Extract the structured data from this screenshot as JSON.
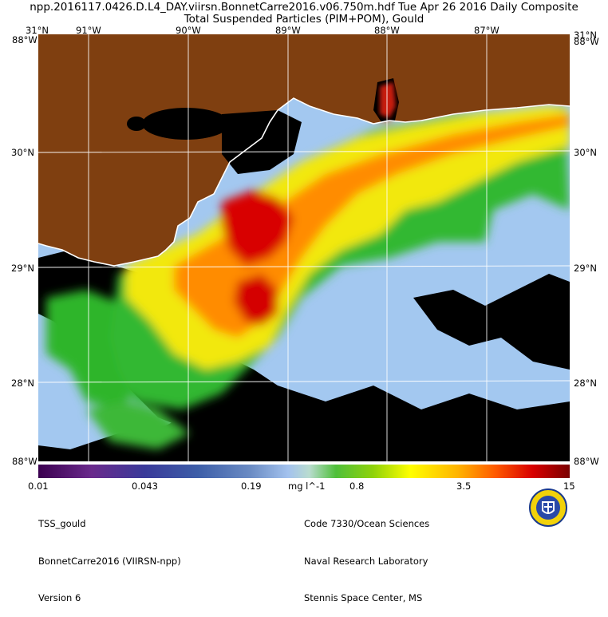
{
  "header": {
    "line1": "npp.2016117.0426.D.L4_DAY.viirsn.BonnetCarre2016.v06.750m.hdf     Tue Apr 26 2016 Daily Composite",
    "line2": "Total Suspended Particles (PIM+POM), Gould"
  },
  "grid_labels": {
    "top": [
      "31°N",
      "91°W",
      "90°W",
      "89°W",
      "88°W",
      "87°W",
      "31°N"
    ],
    "left": [
      "88°W",
      "30°N",
      "29°N",
      "28°N",
      "88°W"
    ],
    "right": [
      "88°W",
      "30°N",
      "29°N",
      "28°N",
      "88°W"
    ],
    "bottom_left": "88°W",
    "bottom_right": "88°W"
  },
  "colorbar": {
    "ticks": [
      "0.01",
      "0.043",
      "0.19",
      "0.8",
      "3.5",
      "15"
    ],
    "unit": "mg l^-1"
  },
  "info_left": [
    "TSS_gould",
    "BonnetCarre2016 (VIIRSN-npp)",
    "Version 6"
  ],
  "info_right": [
    "Code 7330/Ocean Sciences",
    "Naval Research Laboratory",
    "Stennis Space Center, MS"
  ],
  "icons": {
    "seal": "nrl-seal-icon"
  },
  "colors": {
    "land": "#7f3f10",
    "no_data": "#000000",
    "clear_water": "#a3c8f0",
    "high_tss": "#d80000"
  }
}
